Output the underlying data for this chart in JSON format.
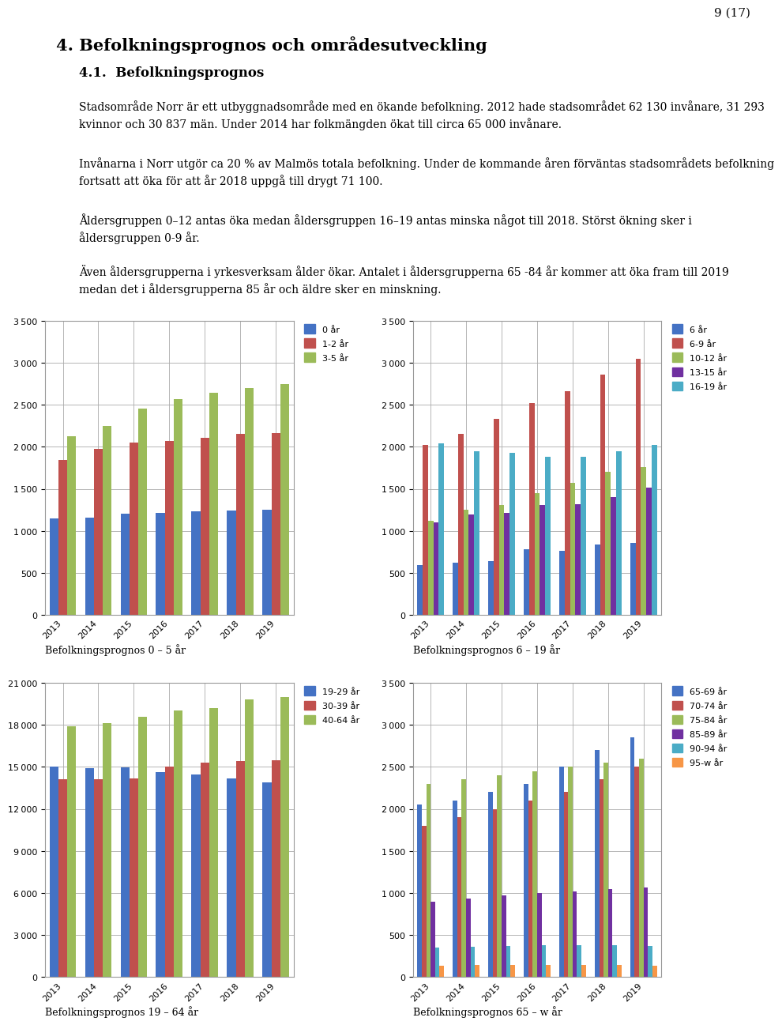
{
  "page_header": "9 (17)",
  "title_main": "4. Befolkningsprognos och områdesutveckling",
  "subtitle": "4.1.  Befolkningsprognos",
  "para1": "Stadsområde Norr är ett utbyggnadsområde med en ökande befolkning. 2012 hade stadsområdet 62 130 invånare, 31 293\nkvinnor och 30 837 män. Under 2014 har folkmängden ökat till circa 65 000 invånare.",
  "para2": "Invånarna i Norr utgör ca 20 % av Malmös totala befolkning. Under de kommande åren förväntas stadsområdets befolkning\nfortsatt att öka för att år 2018 uppgå till drygt 71 100.",
  "para3": "Åldersgruppen 0–12 antas öka medan åldersgruppen 16–19 antas minska något till 2018. Störst ökning sker i\nåldersgruppen 0-9 år.",
  "para4": "Även åldersgrupperna i yrkesverksam ålder ökar. Antalet i åldersgrupperna 65 -84 år kommer att öka fram till 2019\nmedan det i åldersgrupperna 85 år och äldre sker en minskning.",
  "years": [
    2013,
    2014,
    2015,
    2016,
    2017,
    2018,
    2019
  ],
  "chart1": {
    "title": "Befolkningsprognos 0 – 5 år",
    "series": {
      "0 år": [
        1150,
        1155,
        1200,
        1215,
        1230,
        1245,
        1250
      ],
      "1-2 år": [
        1840,
        1975,
        2050,
        2065,
        2110,
        2150,
        2160
      ],
      "3-5 år": [
        2130,
        2250,
        2450,
        2565,
        2640,
        2700,
        2750
      ]
    },
    "colors": {
      "0 år": "#4472C4",
      "1-2 år": "#C0504D",
      "3-5 år": "#9BBB59"
    },
    "ylim": [
      0,
      3500
    ],
    "yticks": [
      0,
      500,
      1000,
      1500,
      2000,
      2500,
      3000,
      3500
    ]
  },
  "chart2": {
    "title": "Befolkningsprognos 6 – 19 år",
    "series": {
      "6 år": [
        590,
        620,
        640,
        780,
        760,
        840,
        860
      ],
      "6-9 år": [
        2020,
        2150,
        2330,
        2520,
        2660,
        2860,
        3050
      ],
      "10-12 år": [
        1120,
        1250,
        1310,
        1450,
        1570,
        1700,
        1760
      ],
      "13-15 år": [
        1100,
        1190,
        1210,
        1310,
        1320,
        1400,
        1510
      ],
      "16-19 år": [
        2040,
        1950,
        1930,
        1880,
        1880,
        1950,
        2020
      ]
    },
    "colors": {
      "6 år": "#4472C4",
      "6-9 år": "#C0504D",
      "10-12 år": "#9BBB59",
      "13-15 år": "#7030A0",
      "16-19 år": "#4BACC6"
    },
    "ylim": [
      0,
      3500
    ],
    "yticks": [
      0,
      500,
      1000,
      1500,
      2000,
      2500,
      3000,
      3500
    ]
  },
  "chart3": {
    "title": "Befolkningsprognos 19 – 64 år",
    "series": {
      "19-29 år": [
        15000,
        14900,
        14950,
        14650,
        14450,
        14200,
        13900
      ],
      "30-39 år": [
        14100,
        14100,
        14200,
        15000,
        15300,
        15400,
        15500
      ],
      "40-64 år": [
        17900,
        18100,
        18600,
        19000,
        19200,
        19800,
        20000
      ]
    },
    "colors": {
      "19-29 år": "#4472C4",
      "30-39 år": "#C0504D",
      "40-64 år": "#9BBB59"
    },
    "ylim": [
      0,
      21000
    ],
    "yticks": [
      0,
      3000,
      6000,
      9000,
      12000,
      15000,
      18000,
      21000
    ]
  },
  "chart4": {
    "title": "Befolkningsprognos 65 – w år",
    "series": {
      "65-69 år": [
        2050,
        2100,
        2200,
        2300,
        2500,
        2700,
        2850
      ],
      "70-74 år": [
        1800,
        1900,
        2000,
        2100,
        2200,
        2350,
        2500
      ],
      "75-84 år": [
        2300,
        2350,
        2400,
        2450,
        2500,
        2550,
        2600
      ],
      "85-89 år": [
        900,
        930,
        970,
        1000,
        1020,
        1050,
        1070
      ],
      "90-94 år": [
        350,
        360,
        370,
        380,
        380,
        380,
        370
      ],
      "95-w år": [
        130,
        140,
        140,
        145,
        145,
        140,
        135
      ]
    },
    "colors": {
      "65-69 år": "#4472C4",
      "70-74 år": "#C0504D",
      "75-84 år": "#9BBB59",
      "85-89 år": "#7030A0",
      "90-94 år": "#4BACC6",
      "95-w år": "#F79646"
    },
    "ylim": [
      0,
      3500
    ],
    "yticks": [
      0,
      500,
      1000,
      1500,
      2000,
      2500,
      3000,
      3500
    ]
  },
  "background_color": "#FFFFFF",
  "grid_color": "#AAAAAA",
  "text_color": "#000000"
}
